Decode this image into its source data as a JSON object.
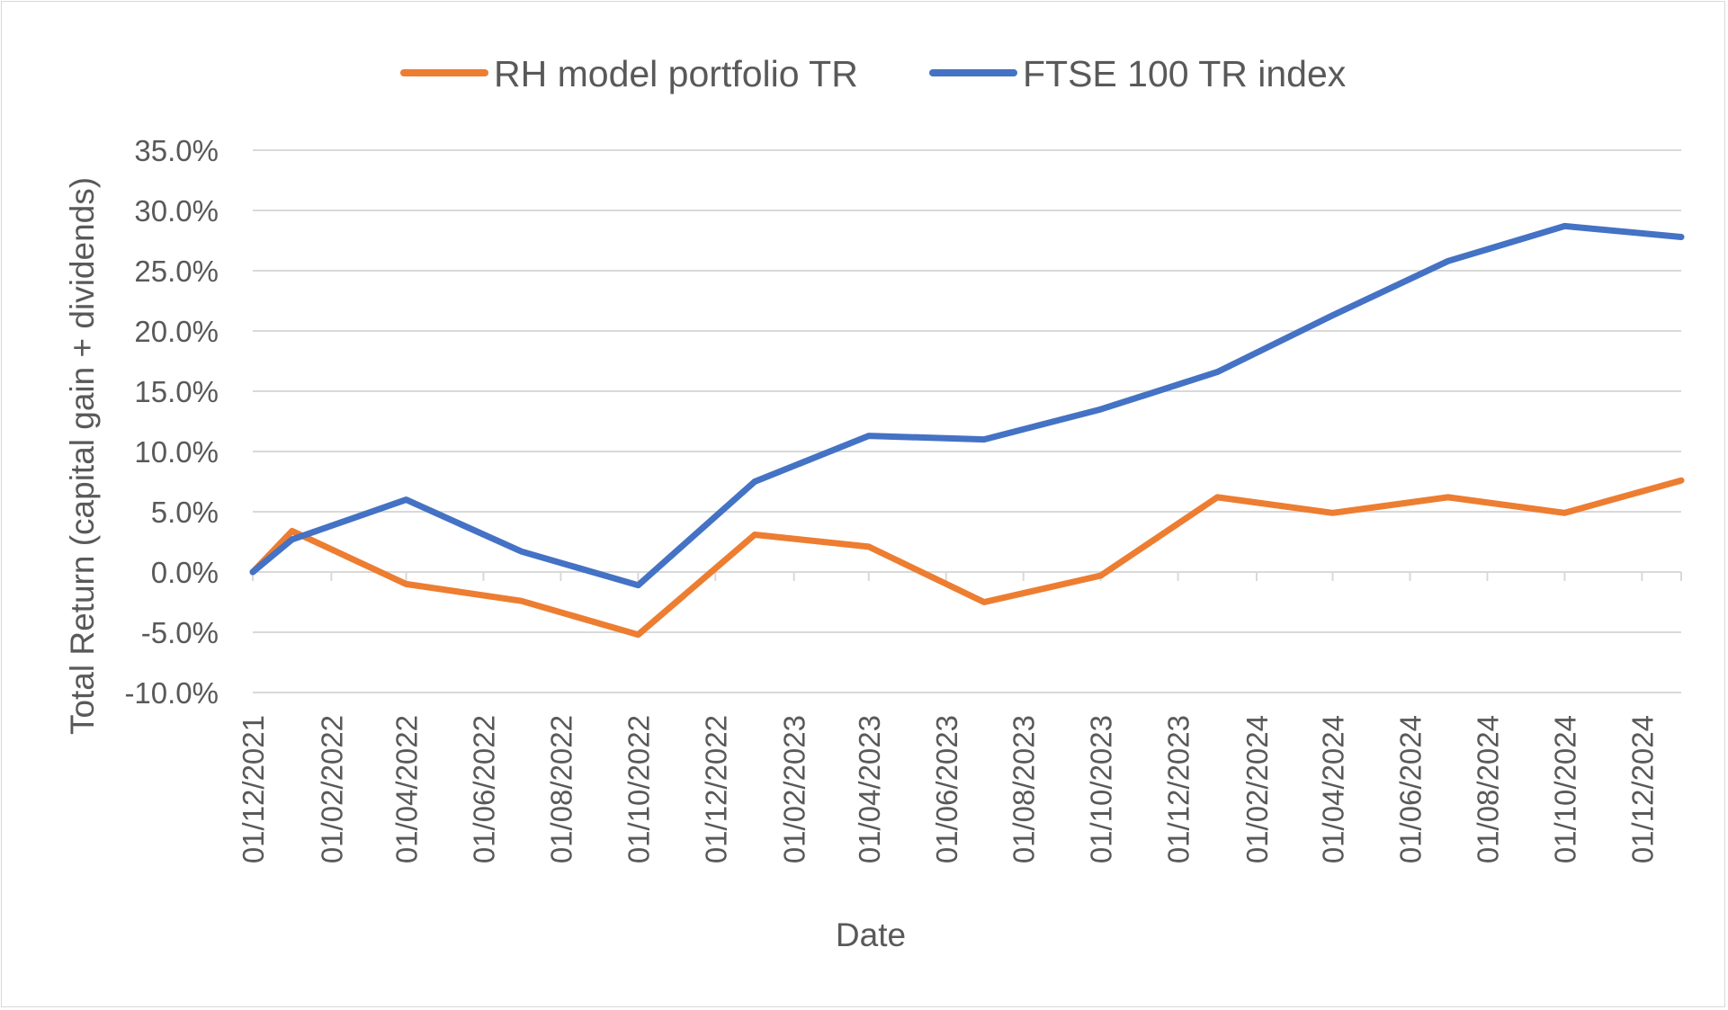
{
  "chart_data": {
    "type": "line",
    "title": "",
    "xlabel": "Date",
    "ylabel": "Total Return (capital gain + dividends)",
    "ylim": [
      -10,
      35
    ],
    "yticks": [
      -10,
      -5,
      0,
      5,
      10,
      15,
      20,
      25,
      30,
      35
    ],
    "ytick_labels": [
      "-10.0%",
      "-5.0%",
      "0.0%",
      "5.0%",
      "10.0%",
      "15.0%",
      "20.0%",
      "25.0%",
      "30.0%",
      "35.0%"
    ],
    "x_start": "2021-12-01",
    "x_end": "2025-01-01",
    "xticks": [
      "2021-12-01",
      "2022-02-01",
      "2022-04-01",
      "2022-06-01",
      "2022-08-01",
      "2022-10-01",
      "2022-12-01",
      "2023-02-01",
      "2023-04-01",
      "2023-06-01",
      "2023-08-01",
      "2023-10-01",
      "2023-12-01",
      "2024-02-01",
      "2024-04-01",
      "2024-06-01",
      "2024-08-01",
      "2024-10-01",
      "2024-12-01"
    ],
    "xtick_labels": [
      "01/12/2021",
      "01/02/2022",
      "01/04/2022",
      "01/06/2022",
      "01/08/2022",
      "01/10/2022",
      "01/12/2022",
      "01/02/2023",
      "01/04/2023",
      "01/06/2023",
      "01/08/2023",
      "01/10/2023",
      "01/12/2023",
      "01/02/2024",
      "01/04/2024",
      "01/06/2024",
      "01/08/2024",
      "01/10/2024",
      "01/12/2024"
    ],
    "grid": true,
    "legend_position": "top-center",
    "series": [
      {
        "name": "RH model portfolio TR",
        "color": "#ed7d31",
        "points": [
          {
            "date": "2021-12-01",
            "value": 0.0
          },
          {
            "date": "2022-01-01",
            "value": 3.4
          },
          {
            "date": "2022-04-01",
            "value": -1.0
          },
          {
            "date": "2022-07-01",
            "value": -2.4
          },
          {
            "date": "2022-10-01",
            "value": -5.2
          },
          {
            "date": "2023-01-01",
            "value": 3.1
          },
          {
            "date": "2023-04-01",
            "value": 2.1
          },
          {
            "date": "2023-07-01",
            "value": -2.5
          },
          {
            "date": "2023-10-01",
            "value": -0.3
          },
          {
            "date": "2024-01-01",
            "value": 6.2
          },
          {
            "date": "2024-04-01",
            "value": 4.9
          },
          {
            "date": "2024-07-01",
            "value": 6.2
          },
          {
            "date": "2024-10-01",
            "value": 4.9
          },
          {
            "date": "2025-01-01",
            "value": 7.6
          }
        ]
      },
      {
        "name": "FTSE 100 TR index",
        "color": "#4472c4",
        "points": [
          {
            "date": "2021-12-01",
            "value": 0.0
          },
          {
            "date": "2022-01-01",
            "value": 2.7
          },
          {
            "date": "2022-04-01",
            "value": 6.0
          },
          {
            "date": "2022-07-01",
            "value": 1.7
          },
          {
            "date": "2022-10-01",
            "value": -1.1
          },
          {
            "date": "2023-01-01",
            "value": 7.5
          },
          {
            "date": "2023-04-01",
            "value": 11.3
          },
          {
            "date": "2023-07-01",
            "value": 11.0
          },
          {
            "date": "2023-10-01",
            "value": 13.5
          },
          {
            "date": "2024-01-01",
            "value": 16.6
          },
          {
            "date": "2024-04-01",
            "value": 21.3
          },
          {
            "date": "2024-07-01",
            "value": 25.8
          },
          {
            "date": "2024-10-01",
            "value": 28.7
          },
          {
            "date": "2025-01-01",
            "value": 27.8
          }
        ]
      }
    ]
  }
}
